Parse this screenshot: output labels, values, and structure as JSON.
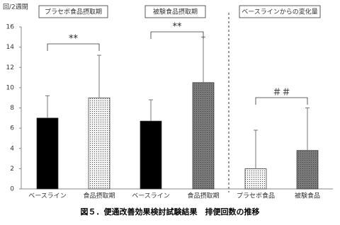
{
  "chart_data": {
    "type": "bar",
    "caption": "図５．便通改善効果検討試験結果　排便回数の推移",
    "ylabel": "回/2週間",
    "group_titles": [
      "プラセボ食品摂取期",
      "被験食品摂取期",
      "ベースラインからの変化量"
    ],
    "categories": [
      "ベースライン",
      "食品摂取期",
      "ベースライン",
      "食品摂取期",
      "プラセボ食品",
      "被験食品"
    ],
    "values": [
      7.0,
      9.0,
      6.7,
      10.5,
      2.0,
      3.8
    ],
    "errors": [
      2.2,
      4.2,
      2.1,
      4.5,
      3.8,
      4.2
    ],
    "colors": [
      "#000000",
      "#f2f2f2",
      "#000000",
      "#7a7a7a",
      "#f2f2f2",
      "#7a7a7a"
    ],
    "annotations": [
      "**",
      "**",
      "＃＃"
    ],
    "ylim": [
      0,
      16
    ],
    "yticks": [
      0,
      2,
      4,
      6,
      8,
      10,
      12,
      14,
      16
    ]
  }
}
